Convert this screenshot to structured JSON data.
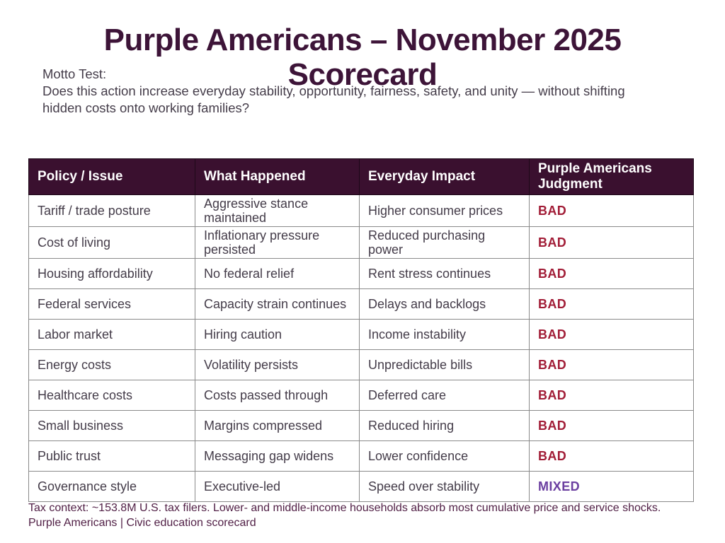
{
  "page": {
    "title": "Purple Americans – November 2025 Scorecard",
    "motto_label": "Motto Test:",
    "motto_text": "Does this action increase everyday stability, opportunity, fairness, safety, and unity — without shifting hidden costs onto working families?"
  },
  "table": {
    "headers": [
      "Policy / Issue",
      "What Happened",
      "Everyday Impact",
      "Purple Americans Judgment"
    ],
    "rows": [
      {
        "policy": "Tariff / trade posture",
        "happened": "Aggressive stance maintained",
        "impact": "Higher consumer prices",
        "judgment": "BAD"
      },
      {
        "policy": "Cost of living",
        "happened": "Inflationary pressure persisted",
        "impact": "Reduced purchasing power",
        "judgment": "BAD"
      },
      {
        "policy": "Housing affordability",
        "happened": "No federal relief",
        "impact": "Rent stress continues",
        "judgment": "BAD"
      },
      {
        "policy": "Federal services",
        "happened": "Capacity strain continues",
        "impact": "Delays and backlogs",
        "judgment": "BAD"
      },
      {
        "policy": "Labor market",
        "happened": "Hiring caution",
        "impact": "Income instability",
        "judgment": "BAD"
      },
      {
        "policy": "Energy costs",
        "happened": "Volatility persists",
        "impact": "Unpredictable bills",
        "judgment": "BAD"
      },
      {
        "policy": "Healthcare costs",
        "happened": "Costs passed through",
        "impact": "Deferred care",
        "judgment": "BAD"
      },
      {
        "policy": "Small business",
        "happened": "Margins compressed",
        "impact": "Reduced hiring",
        "judgment": "BAD"
      },
      {
        "policy": "Public trust",
        "happened": "Messaging gap widens",
        "impact": "Lower confidence",
        "judgment": "BAD"
      },
      {
        "policy": "Governance style",
        "happened": "Executive-led",
        "impact": "Speed over stability",
        "judgment": "MIXED"
      }
    ]
  },
  "footer": {
    "tax_context": "Tax context: ~153.8M U.S. tax filers. Lower- and middle-income households absorb most cumulative price and service shocks.",
    "brand_line": "Purple Americans | Civic education scorecard"
  },
  "colors": {
    "title": "#3d1438",
    "header_bg": "#3a102f",
    "header_text": "#ffffff",
    "body_text": "#443c49",
    "bad": "#a11c36",
    "mixed": "#6b3fa0",
    "footer_text": "#512046",
    "border": "#8a8a8a"
  }
}
